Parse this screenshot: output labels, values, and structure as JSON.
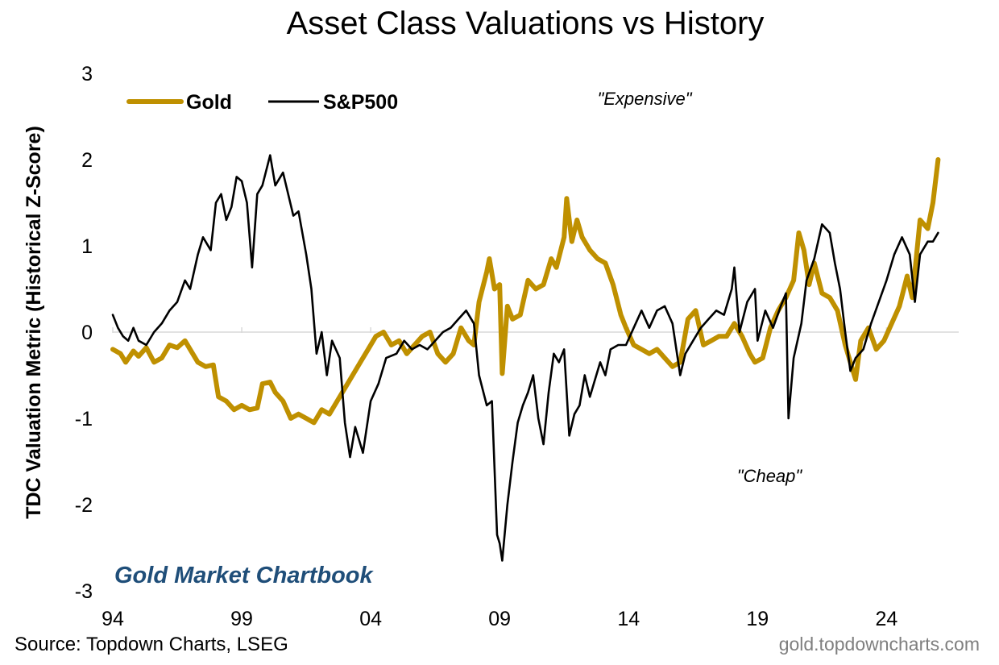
{
  "chart_data": {
    "type": "line",
    "title": "Asset Class Valuations vs History",
    "ylabel": "TDC Valuation Metric (Historical Z-Score)",
    "xlabel": "",
    "x_tick_labels": [
      "94",
      "99",
      "04",
      "09",
      "14",
      "19",
      "24"
    ],
    "x_tick_years": [
      1994,
      1999,
      2004,
      2009,
      2014,
      2019,
      2024
    ],
    "x_range": [
      1994,
      2026.8
    ],
    "ylim": [
      -3,
      3
    ],
    "y_ticks": [
      3,
      2,
      1,
      0,
      -1,
      -2,
      -3
    ],
    "y_tick_labels": [
      "3",
      "2",
      "1",
      "0",
      "-1",
      "-2",
      "-3"
    ],
    "zero_line": true,
    "grid": false,
    "legend_position": "top-left",
    "annotations": {
      "expensive": "\"Expensive\"",
      "cheap": "\"Cheap\""
    },
    "series": [
      {
        "name": "Gold",
        "color": "#bf9000",
        "points": [
          [
            1994.0,
            -0.2
          ],
          [
            1994.3,
            -0.25
          ],
          [
            1994.5,
            -0.35
          ],
          [
            1994.8,
            -0.22
          ],
          [
            1995.0,
            -0.28
          ],
          [
            1995.3,
            -0.18
          ],
          [
            1995.6,
            -0.35
          ],
          [
            1995.9,
            -0.3
          ],
          [
            1996.2,
            -0.15
          ],
          [
            1996.5,
            -0.18
          ],
          [
            1996.8,
            -0.1
          ],
          [
            1997.0,
            -0.2
          ],
          [
            1997.3,
            -0.35
          ],
          [
            1997.6,
            -0.4
          ],
          [
            1997.9,
            -0.38
          ],
          [
            1998.1,
            -0.75
          ],
          [
            1998.4,
            -0.8
          ],
          [
            1998.7,
            -0.9
          ],
          [
            1999.0,
            -0.85
          ],
          [
            1999.3,
            -0.9
          ],
          [
            1999.6,
            -0.88
          ],
          [
            1999.8,
            -0.6
          ],
          [
            2000.1,
            -0.58
          ],
          [
            2000.3,
            -0.7
          ],
          [
            2000.6,
            -0.8
          ],
          [
            2000.9,
            -1.0
          ],
          [
            2001.2,
            -0.95
          ],
          [
            2001.5,
            -1.0
          ],
          [
            2001.8,
            -1.05
          ],
          [
            2002.1,
            -0.9
          ],
          [
            2002.4,
            -0.95
          ],
          [
            2002.7,
            -0.8
          ],
          [
            2003.0,
            -0.65
          ],
          [
            2003.3,
            -0.5
          ],
          [
            2003.6,
            -0.35
          ],
          [
            2003.9,
            -0.2
          ],
          [
            2004.2,
            -0.05
          ],
          [
            2004.5,
            0.0
          ],
          [
            2004.8,
            -0.15
          ],
          [
            2005.1,
            -0.1
          ],
          [
            2005.4,
            -0.25
          ],
          [
            2005.7,
            -0.15
          ],
          [
            2006.0,
            -0.05
          ],
          [
            2006.3,
            0.0
          ],
          [
            2006.6,
            -0.25
          ],
          [
            2006.9,
            -0.35
          ],
          [
            2007.2,
            -0.25
          ],
          [
            2007.5,
            0.05
          ],
          [
            2007.8,
            -0.1
          ],
          [
            2008.0,
            -0.15
          ],
          [
            2008.2,
            0.35
          ],
          [
            2008.5,
            0.7
          ],
          [
            2008.6,
            0.85
          ],
          [
            2008.8,
            0.5
          ],
          [
            2009.0,
            0.55
          ],
          [
            2009.1,
            -0.48
          ],
          [
            2009.3,
            0.3
          ],
          [
            2009.5,
            0.15
          ],
          [
            2009.8,
            0.2
          ],
          [
            2010.1,
            0.6
          ],
          [
            2010.4,
            0.5
          ],
          [
            2010.7,
            0.55
          ],
          [
            2011.0,
            0.85
          ],
          [
            2011.2,
            0.75
          ],
          [
            2011.5,
            1.1
          ],
          [
            2011.6,
            1.55
          ],
          [
            2011.8,
            1.05
          ],
          [
            2012.0,
            1.3
          ],
          [
            2012.2,
            1.1
          ],
          [
            2012.5,
            0.95
          ],
          [
            2012.8,
            0.85
          ],
          [
            2013.1,
            0.8
          ],
          [
            2013.4,
            0.55
          ],
          [
            2013.7,
            0.2
          ],
          [
            2013.9,
            0.05
          ],
          [
            2014.2,
            -0.15
          ],
          [
            2014.5,
            -0.2
          ],
          [
            2014.8,
            -0.25
          ],
          [
            2015.1,
            -0.2
          ],
          [
            2015.4,
            -0.3
          ],
          [
            2015.7,
            -0.4
          ],
          [
            2016.0,
            -0.35
          ],
          [
            2016.3,
            0.15
          ],
          [
            2016.6,
            0.25
          ],
          [
            2016.9,
            -0.15
          ],
          [
            2017.2,
            -0.1
          ],
          [
            2017.5,
            -0.05
          ],
          [
            2017.8,
            -0.05
          ],
          [
            2018.1,
            0.1
          ],
          [
            2018.4,
            -0.05
          ],
          [
            2018.7,
            -0.25
          ],
          [
            2018.9,
            -0.35
          ],
          [
            2019.2,
            -0.3
          ],
          [
            2019.5,
            0.05
          ],
          [
            2019.8,
            0.25
          ],
          [
            2020.1,
            0.4
          ],
          [
            2020.4,
            0.6
          ],
          [
            2020.6,
            1.15
          ],
          [
            2020.8,
            0.95
          ],
          [
            2021.0,
            0.55
          ],
          [
            2021.2,
            0.8
          ],
          [
            2021.5,
            0.45
          ],
          [
            2021.8,
            0.4
          ],
          [
            2022.1,
            0.25
          ],
          [
            2022.4,
            -0.15
          ],
          [
            2022.6,
            -0.35
          ],
          [
            2022.8,
            -0.55
          ],
          [
            2023.0,
            -0.1
          ],
          [
            2023.3,
            0.05
          ],
          [
            2023.6,
            -0.2
          ],
          [
            2023.9,
            -0.1
          ],
          [
            2024.2,
            0.1
          ],
          [
            2024.5,
            0.3
          ],
          [
            2024.8,
            0.65
          ],
          [
            2025.0,
            0.4
          ],
          [
            2025.3,
            1.3
          ],
          [
            2025.6,
            1.2
          ],
          [
            2025.8,
            1.5
          ],
          [
            2026.0,
            2.0
          ]
        ]
      },
      {
        "name": "S&P500",
        "color": "#000000",
        "points": [
          [
            1994.0,
            0.2
          ],
          [
            1994.2,
            0.05
          ],
          [
            1994.4,
            -0.05
          ],
          [
            1994.6,
            -0.1
          ],
          [
            1994.8,
            0.05
          ],
          [
            1995.0,
            -0.1
          ],
          [
            1995.3,
            -0.15
          ],
          [
            1995.6,
            0.0
          ],
          [
            1995.9,
            0.1
          ],
          [
            1996.2,
            0.25
          ],
          [
            1996.5,
            0.35
          ],
          [
            1996.8,
            0.6
          ],
          [
            1997.0,
            0.5
          ],
          [
            1997.3,
            0.9
          ],
          [
            1997.5,
            1.1
          ],
          [
            1997.8,
            0.95
          ],
          [
            1998.0,
            1.5
          ],
          [
            1998.2,
            1.6
          ],
          [
            1998.4,
            1.3
          ],
          [
            1998.6,
            1.45
          ],
          [
            1998.8,
            1.8
          ],
          [
            1999.0,
            1.75
          ],
          [
            1999.2,
            1.5
          ],
          [
            1999.4,
            0.75
          ],
          [
            1999.6,
            1.6
          ],
          [
            1999.8,
            1.7
          ],
          [
            2000.1,
            2.05
          ],
          [
            2000.3,
            1.7
          ],
          [
            2000.6,
            1.85
          ],
          [
            2000.8,
            1.6
          ],
          [
            2001.0,
            1.35
          ],
          [
            2001.2,
            1.4
          ],
          [
            2001.5,
            0.9
          ],
          [
            2001.7,
            0.5
          ],
          [
            2001.9,
            -0.25
          ],
          [
            2002.1,
            0.0
          ],
          [
            2002.3,
            -0.5
          ],
          [
            2002.5,
            -0.1
          ],
          [
            2002.8,
            -0.3
          ],
          [
            2003.0,
            -1.05
          ],
          [
            2003.2,
            -1.45
          ],
          [
            2003.4,
            -1.1
          ],
          [
            2003.7,
            -1.4
          ],
          [
            2004.0,
            -0.8
          ],
          [
            2004.3,
            -0.6
          ],
          [
            2004.6,
            -0.3
          ],
          [
            2005.0,
            -0.25
          ],
          [
            2005.3,
            -0.1
          ],
          [
            2005.6,
            -0.2
          ],
          [
            2005.9,
            -0.15
          ],
          [
            2006.2,
            -0.2
          ],
          [
            2006.5,
            -0.1
          ],
          [
            2006.8,
            0.0
          ],
          [
            2007.1,
            0.05
          ],
          [
            2007.4,
            0.15
          ],
          [
            2007.7,
            0.25
          ],
          [
            2008.0,
            0.1
          ],
          [
            2008.2,
            -0.5
          ],
          [
            2008.5,
            -0.85
          ],
          [
            2008.7,
            -0.8
          ],
          [
            2008.9,
            -2.35
          ],
          [
            2009.0,
            -2.45
          ],
          [
            2009.1,
            -2.65
          ],
          [
            2009.3,
            -2.0
          ],
          [
            2009.5,
            -1.5
          ],
          [
            2009.7,
            -1.05
          ],
          [
            2009.9,
            -0.85
          ],
          [
            2010.1,
            -0.7
          ],
          [
            2010.3,
            -0.5
          ],
          [
            2010.5,
            -1.0
          ],
          [
            2010.7,
            -1.3
          ],
          [
            2010.9,
            -0.7
          ],
          [
            2011.1,
            -0.25
          ],
          [
            2011.3,
            -0.35
          ],
          [
            2011.5,
            -0.2
          ],
          [
            2011.7,
            -1.2
          ],
          [
            2011.9,
            -0.95
          ],
          [
            2012.1,
            -0.85
          ],
          [
            2012.3,
            -0.5
          ],
          [
            2012.5,
            -0.75
          ],
          [
            2012.7,
            -0.55
          ],
          [
            2012.9,
            -0.35
          ],
          [
            2013.1,
            -0.5
          ],
          [
            2013.3,
            -0.2
          ],
          [
            2013.6,
            -0.15
          ],
          [
            2013.9,
            -0.15
          ],
          [
            2014.2,
            0.05
          ],
          [
            2014.5,
            0.25
          ],
          [
            2014.8,
            0.05
          ],
          [
            2015.1,
            0.25
          ],
          [
            2015.4,
            0.3
          ],
          [
            2015.7,
            0.1
          ],
          [
            2016.0,
            -0.5
          ],
          [
            2016.2,
            -0.25
          ],
          [
            2016.5,
            -0.1
          ],
          [
            2016.8,
            0.05
          ],
          [
            2017.1,
            0.15
          ],
          [
            2017.4,
            0.25
          ],
          [
            2017.7,
            0.2
          ],
          [
            2018.0,
            0.5
          ],
          [
            2018.1,
            0.75
          ],
          [
            2018.3,
            0.0
          ],
          [
            2018.6,
            0.35
          ],
          [
            2018.9,
            0.5
          ],
          [
            2019.0,
            -0.1
          ],
          [
            2019.3,
            0.25
          ],
          [
            2019.6,
            0.05
          ],
          [
            2019.9,
            0.3
          ],
          [
            2020.1,
            0.45
          ],
          [
            2020.2,
            -1.0
          ],
          [
            2020.4,
            -0.3
          ],
          [
            2020.7,
            0.1
          ],
          [
            2020.9,
            0.6
          ],
          [
            2021.2,
            0.85
          ],
          [
            2021.5,
            1.25
          ],
          [
            2021.8,
            1.15
          ],
          [
            2022.0,
            0.8
          ],
          [
            2022.2,
            0.5
          ],
          [
            2022.4,
            0.0
          ],
          [
            2022.6,
            -0.45
          ],
          [
            2022.8,
            -0.3
          ],
          [
            2023.1,
            -0.2
          ],
          [
            2023.4,
            0.1
          ],
          [
            2023.7,
            0.35
          ],
          [
            2024.0,
            0.6
          ],
          [
            2024.3,
            0.9
          ],
          [
            2024.6,
            1.1
          ],
          [
            2024.9,
            0.9
          ],
          [
            2025.1,
            0.35
          ],
          [
            2025.3,
            0.9
          ],
          [
            2025.6,
            1.05
          ],
          [
            2025.8,
            1.05
          ],
          [
            2026.0,
            1.15
          ]
        ]
      }
    ]
  },
  "branding": {
    "chartbook": "Gold Market Chartbook",
    "source": "Source: Topdown Charts, LSEG",
    "website": "gold.topdowncharts.com"
  }
}
